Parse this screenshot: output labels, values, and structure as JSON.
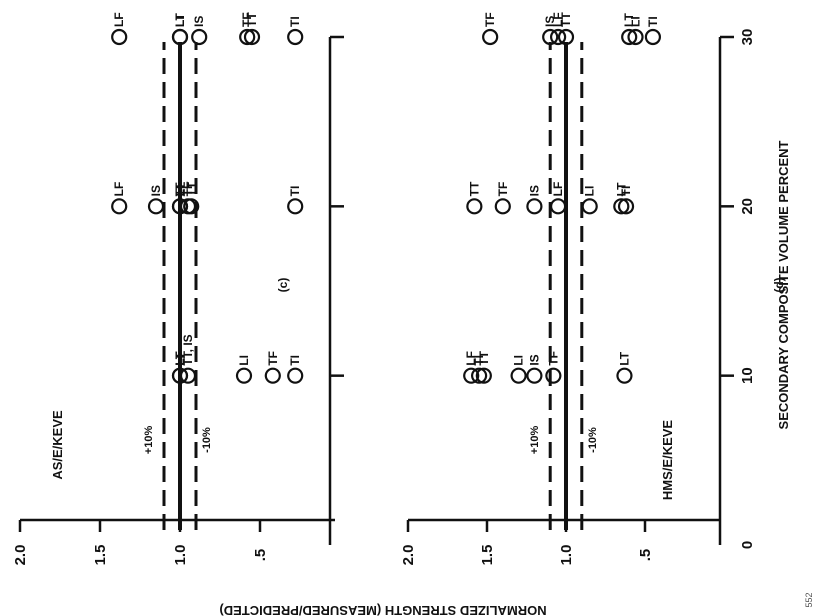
{
  "figure": {
    "ylabel": "NORMALIZED STRENGTH (MEASURED/PREDICTED)",
    "xlabel": "SECONDARY COMPOSITE VOLUME PERCENT",
    "page_number": "552"
  },
  "chart_data": [
    {
      "type": "scatter",
      "panel": "(c)",
      "title": "AS/E/KEVE",
      "xlim": [
        0,
        30
      ],
      "ylim": [
        0,
        2.0
      ],
      "x_ticks": [],
      "y_ticks": [
        "2.0",
        "1.5",
        "1.0",
        ".5"
      ],
      "reference_lines": [
        {
          "label": "+10%",
          "y": 1.1,
          "style": "dashed"
        },
        {
          "label": "",
          "y": 1.0,
          "style": "solid"
        },
        {
          "label": "-10%",
          "y": 0.9,
          "style": "dashed"
        }
      ],
      "points": [
        {
          "x": 10,
          "y": 1.0,
          "label": "LF"
        },
        {
          "x": 10,
          "y": 1.0,
          "label": "LT"
        },
        {
          "x": 10,
          "y": 0.95,
          "label": "TT, IS"
        },
        {
          "x": 10,
          "y": 0.6,
          "label": "LI"
        },
        {
          "x": 10,
          "y": 0.42,
          "label": "TF"
        },
        {
          "x": 10,
          "y": 0.28,
          "label": "TI"
        },
        {
          "x": 20,
          "y": 1.38,
          "label": "LF"
        },
        {
          "x": 20,
          "y": 1.15,
          "label": "IS"
        },
        {
          "x": 20,
          "y": 1.0,
          "label": "TI"
        },
        {
          "x": 20,
          "y": 1.0,
          "label": "LT"
        },
        {
          "x": 20,
          "y": 0.95,
          "label": "TF"
        },
        {
          "x": 20,
          "y": 0.93,
          "label": "TT"
        },
        {
          "x": 20,
          "y": 0.28,
          "label": "TI"
        },
        {
          "x": 30,
          "y": 1.38,
          "label": "LF"
        },
        {
          "x": 30,
          "y": 1.0,
          "label": "LI"
        },
        {
          "x": 30,
          "y": 1.0,
          "label": "LT"
        },
        {
          "x": 30,
          "y": 0.88,
          "label": "IS"
        },
        {
          "x": 30,
          "y": 0.58,
          "label": "TF"
        },
        {
          "x": 30,
          "y": 0.55,
          "label": "TT"
        },
        {
          "x": 30,
          "y": 0.28,
          "label": "TI"
        }
      ]
    },
    {
      "type": "scatter",
      "panel": "(d)",
      "title": "HMS/E/KEVE",
      "xlim": [
        0,
        30
      ],
      "ylim": [
        0,
        2.0
      ],
      "x_ticks": [
        "0",
        "10",
        "20",
        "30"
      ],
      "y_ticks": [
        "2.0",
        "1.5",
        "1.0",
        ".5"
      ],
      "reference_lines": [
        {
          "label": "+10%",
          "y": 1.1,
          "style": "dashed"
        },
        {
          "label": "",
          "y": 1.0,
          "style": "solid"
        },
        {
          "label": "-10%",
          "y": 0.9,
          "style": "dashed"
        }
      ],
      "points": [
        {
          "x": 10,
          "y": 1.6,
          "label": "LF"
        },
        {
          "x": 10,
          "y": 1.55,
          "label": "TI"
        },
        {
          "x": 10,
          "y": 1.52,
          "label": "TT"
        },
        {
          "x": 10,
          "y": 1.3,
          "label": "LI"
        },
        {
          "x": 10,
          "y": 1.2,
          "label": "IS"
        },
        {
          "x": 10,
          "y": 1.08,
          "label": "TF"
        },
        {
          "x": 10,
          "y": 0.63,
          "label": "LT"
        },
        {
          "x": 20,
          "y": 1.58,
          "label": "TT"
        },
        {
          "x": 20,
          "y": 1.4,
          "label": "TF"
        },
        {
          "x": 20,
          "y": 1.2,
          "label": "IS"
        },
        {
          "x": 20,
          "y": 1.05,
          "label": "LF"
        },
        {
          "x": 20,
          "y": 0.85,
          "label": "LI"
        },
        {
          "x": 20,
          "y": 0.65,
          "label": "LT"
        },
        {
          "x": 20,
          "y": 0.62,
          "label": "TI"
        },
        {
          "x": 30,
          "y": 1.48,
          "label": "TF"
        },
        {
          "x": 30,
          "y": 1.1,
          "label": "IS"
        },
        {
          "x": 30,
          "y": 1.05,
          "label": "LF"
        },
        {
          "x": 30,
          "y": 1.0,
          "label": "TT"
        },
        {
          "x": 30,
          "y": 0.6,
          "label": "LT"
        },
        {
          "x": 30,
          "y": 0.56,
          "label": "LI"
        },
        {
          "x": 30,
          "y": 0.45,
          "label": "TI"
        }
      ]
    }
  ]
}
